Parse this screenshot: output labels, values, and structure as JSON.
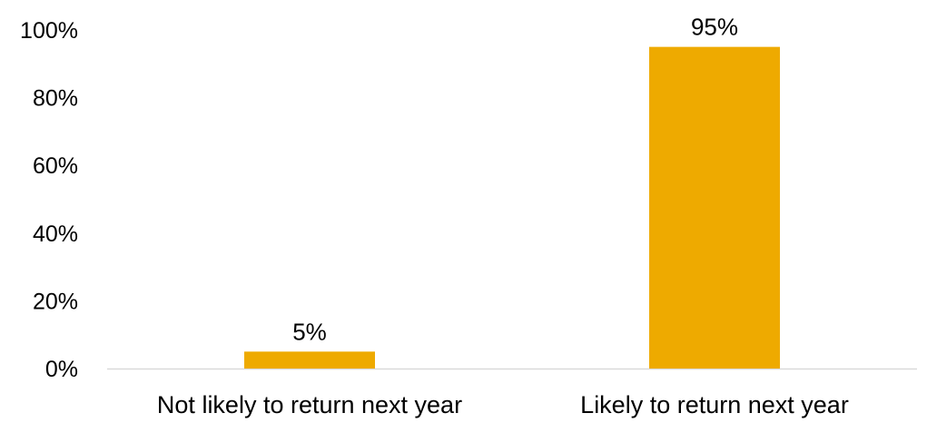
{
  "chart_data": {
    "type": "bar",
    "categories": [
      "Not likely to return next year",
      "Likely to return next year"
    ],
    "values": [
      5,
      95
    ],
    "data_labels": [
      "5%",
      "95%"
    ],
    "ylim": [
      0,
      100
    ],
    "yticks": [
      0,
      20,
      40,
      60,
      80,
      100
    ],
    "ytick_labels": [
      "0%",
      "20%",
      "40%",
      "60%",
      "80%",
      "100%"
    ],
    "title": "",
    "xlabel": "",
    "ylabel": "",
    "grid": false,
    "legend": "none",
    "bar_color": "#EEAA00",
    "axis_color": "#D9D9D9"
  }
}
